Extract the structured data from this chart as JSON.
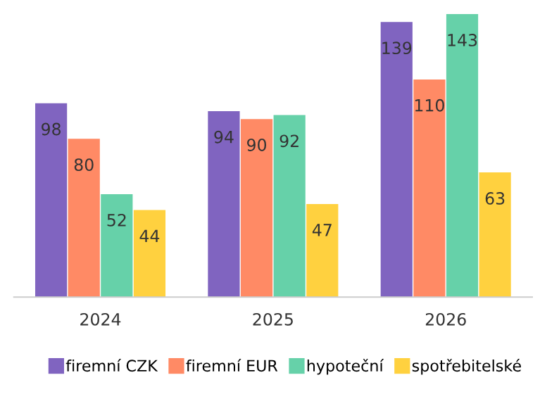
{
  "chart_data": {
    "type": "bar",
    "categories": [
      "2024",
      "2025",
      "2026"
    ],
    "series": [
      {
        "name": "firemní CZK",
        "color": "#8064c0",
        "values": [
          98,
          94,
          139
        ]
      },
      {
        "name": "firemní EUR",
        "color": "#ff8a65",
        "values": [
          80,
          90,
          110
        ]
      },
      {
        "name": "hypoteční",
        "color": "#66d1a9",
        "values": [
          52,
          92,
          143
        ]
      },
      {
        "name": "spotřebitelské",
        "color": "#ffd13f",
        "values": [
          44,
          47,
          63
        ]
      }
    ],
    "data_labels": true,
    "legend": "bottom",
    "grid": false
  }
}
